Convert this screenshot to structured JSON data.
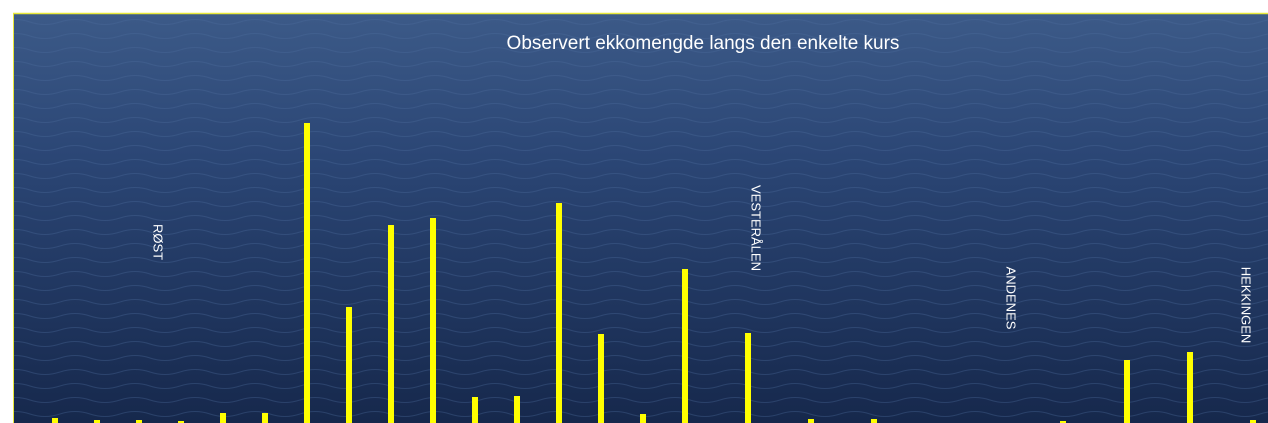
{
  "chart_data": {
    "type": "bar",
    "title": "Observert ekkomengde langs den enkelte kurs",
    "categories": [
      null,
      null,
      null,
      null,
      null,
      null,
      null,
      null,
      null,
      null,
      null,
      null,
      null,
      null,
      null,
      null,
      null,
      null,
      null,
      null,
      null,
      null,
      null
    ],
    "values": [
      5,
      3,
      3,
      2,
      10,
      10,
      300,
      116,
      198,
      205,
      26,
      27,
      220,
      89,
      9,
      154,
      90,
      4,
      4,
      2,
      63,
      71,
      3
    ],
    "color": "#ffff00",
    "annotations": [
      "RØST",
      "VESTERÅLEN",
      "ANDENES",
      "HEKKINGEN"
    ]
  }
}
